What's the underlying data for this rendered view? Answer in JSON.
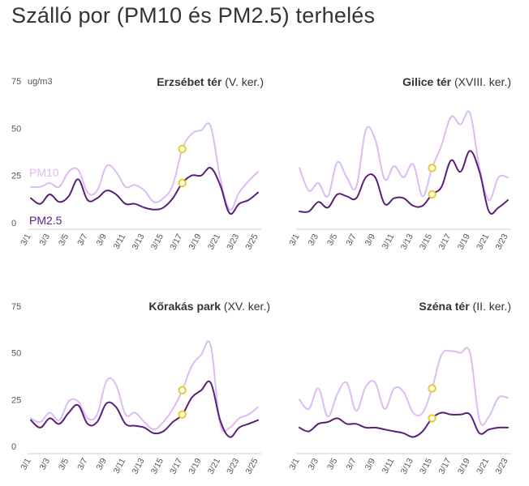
{
  "title": "Szálló por (PM10 és PM2.5) terhelés",
  "colors": {
    "pm10": "#dcbcf3",
    "pm25": "#5a1f7a",
    "marker": "#e8cc1e",
    "axis": "#cccccc",
    "text": "#555555"
  },
  "unit": "ug/m3",
  "chart_data": [
    {
      "type": "line",
      "name_bold": "Erzsébet tér",
      "name_rest": " (V. ker.)",
      "show_unit": true,
      "show_series_labels": true,
      "series_labels": [
        "PM10",
        "PM2.5"
      ],
      "y_ticks": [
        0,
        25,
        50,
        75
      ],
      "ylim": [
        0,
        75
      ],
      "x_labels": [
        "3/1",
        "3/3",
        "3/5",
        "3/7",
        "3/9",
        "3/11",
        "3/13",
        "3/15",
        "3/17",
        "3/19",
        "3/21",
        "3/23",
        "3/25"
      ],
      "days": 25,
      "marker_index": 16,
      "series": [
        {
          "name": "PM10",
          "values": [
            19,
            19,
            21,
            19,
            27,
            28,
            16,
            17,
            30,
            27,
            19,
            20,
            17,
            11,
            13,
            20,
            39,
            47,
            49,
            51,
            24,
            7,
            16,
            22,
            27
          ]
        },
        {
          "name": "PM2.5",
          "values": [
            13,
            10,
            15,
            11,
            14,
            23,
            12,
            13,
            17,
            15,
            10,
            10,
            8,
            7,
            8,
            13,
            21,
            25,
            25,
            29,
            20,
            5,
            10,
            12,
            16
          ]
        }
      ]
    },
    {
      "type": "line",
      "name_bold": "Gilice tér",
      "name_rest": " (XVIII. ker.)",
      "show_unit": false,
      "show_series_labels": false,
      "series_labels": [],
      "y_ticks": [],
      "ylim": [
        0,
        75
      ],
      "x_labels": [
        "3/1",
        "3/3",
        "3/5",
        "3/7",
        "3/9",
        "3/11",
        "3/13",
        "3/15",
        "3/17",
        "3/19",
        "3/21",
        "3/23"
      ],
      "days": 23,
      "marker_index": 14,
      "series": [
        {
          "name": "PM10",
          "values": [
            29,
            17,
            21,
            14,
            32,
            24,
            19,
            49,
            44,
            23,
            30,
            24,
            31,
            14,
            29,
            41,
            56,
            52,
            58,
            29,
            12,
            24,
            24
          ]
        },
        {
          "name": "PM2.5",
          "values": [
            6,
            6,
            11,
            8,
            15,
            14,
            13,
            24,
            24,
            10,
            13,
            13,
            9,
            9,
            15,
            19,
            33,
            27,
            38,
            27,
            6,
            8,
            12
          ]
        }
      ]
    },
    {
      "type": "line",
      "name_bold": "Kőrakás park",
      "name_rest": " (XV. ker.)",
      "show_unit": false,
      "show_series_labels": false,
      "series_labels": [],
      "y_ticks": [
        0,
        25,
        50,
        75
      ],
      "ylim": [
        0,
        75
      ],
      "x_labels": [
        "3/1",
        "3/3",
        "3/5",
        "3/7",
        "3/9",
        "3/11",
        "3/13",
        "3/15",
        "3/17",
        "3/19",
        "3/21",
        "3/23",
        "3/25"
      ],
      "days": 25,
      "marker_index": 16,
      "series": [
        {
          "name": "PM10",
          "values": [
            15,
            13,
            18,
            14,
            24,
            24,
            15,
            17,
            35,
            33,
            17,
            18,
            13,
            9,
            13,
            20,
            30,
            43,
            49,
            54,
            12,
            10,
            15,
            17,
            21
          ]
        },
        {
          "name": "PM2.5",
          "values": [
            14,
            10,
            15,
            12,
            18,
            22,
            12,
            13,
            23,
            21,
            12,
            11,
            10,
            7,
            8,
            13,
            17,
            26,
            30,
            34,
            14,
            5,
            10,
            12,
            14
          ]
        }
      ]
    },
    {
      "type": "line",
      "name_bold": "Széna tér",
      "name_rest": " (II. ker.)",
      "show_unit": false,
      "show_series_labels": false,
      "series_labels": [],
      "y_ticks": [],
      "ylim": [
        0,
        75
      ],
      "x_labels": [
        "3/1",
        "3/3",
        "3/5",
        "3/7",
        "3/9",
        "3/11",
        "3/13",
        "3/15",
        "3/17",
        "3/19",
        "3/21",
        "3/23"
      ],
      "days": 23,
      "marker_index": 14,
      "series": [
        {
          "name": "PM10",
          "values": [
            25,
            20,
            31,
            16,
            28,
            34,
            19,
            32,
            34,
            20,
            31,
            29,
            18,
            18,
            31,
            49,
            51,
            50,
            50,
            14,
            16,
            26,
            26
          ]
        },
        {
          "name": "PM2.5",
          "values": [
            10,
            8,
            12,
            13,
            15,
            12,
            12,
            10,
            10,
            9,
            8,
            7,
            5,
            8,
            15,
            18,
            17,
            17,
            17,
            7,
            9,
            10,
            10
          ]
        }
      ]
    }
  ]
}
